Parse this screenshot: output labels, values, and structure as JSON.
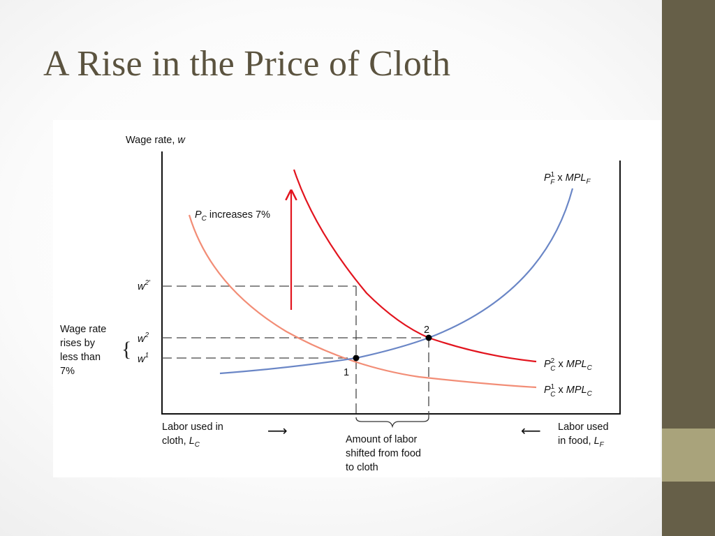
{
  "slide": {
    "title": "A Rise in the Price of Cloth",
    "colors": {
      "title": "#5b533f",
      "sidebar": "#665f48",
      "sidebar_accent": "#a9a37b"
    }
  },
  "diagram": {
    "y_axis_label": "Wage rate, ",
    "y_axis_var": "w",
    "wage_levels": {
      "w2prime": {
        "base": "w",
        "sup": "2′"
      },
      "w2": {
        "base": "w",
        "sup": "2"
      },
      "w1": {
        "base": "w",
        "sup": "1"
      }
    },
    "annotation_left": [
      "Wage rate",
      "rises by",
      "less than",
      "7%"
    ],
    "pc_increase": {
      "var": "P",
      "sub": "C",
      "text": " increases 7%"
    },
    "curves": {
      "food": {
        "P": "P",
        "sup": "1",
        "sub": "F",
        "times": " x ",
        "mpl": "MPL",
        "mpl_sub": "F",
        "color": "#6a86c6"
      },
      "cloth_new": {
        "P": "P",
        "sup": "2",
        "sub": "C",
        "times": " x ",
        "mpl": "MPL",
        "mpl_sub": "C",
        "color": "#e2141e"
      },
      "cloth_old": {
        "P": "P",
        "sup": "1",
        "sub": "C",
        "times": " x ",
        "mpl": "MPL",
        "mpl_sub": "C",
        "color": "#f28d76"
      }
    },
    "points": {
      "p1": "1",
      "p2": "2"
    },
    "bottom_left": {
      "line1": "Labor used in",
      "line2": "cloth, ",
      "var": "L",
      "sub": "C"
    },
    "bottom_right": {
      "line1": "Labor used",
      "line2": "in food, ",
      "var": "L",
      "sub": "F"
    },
    "arrow_right": "⟶",
    "arrow_left": "⟵",
    "shift_note": [
      "Amount of labor",
      "shifted from food",
      "to cloth"
    ],
    "brace_char": "{"
  }
}
